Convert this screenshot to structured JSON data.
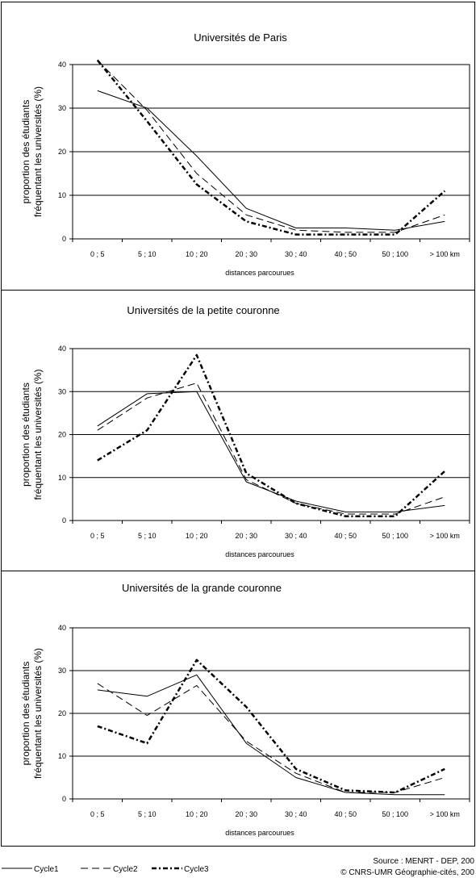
{
  "chart_data": [
    {
      "type": "line",
      "title": "Universités de Paris",
      "xlabel": "distances parcourues",
      "ylabel": [
        "proportion des étudiants",
        "fréquentant les universités  (%)"
      ],
      "categories": [
        "0 ; 5",
        "5 ; 10",
        "10 ; 20",
        "20 ; 30",
        "30 ; 40",
        "40 ; 50",
        "50 ; 100",
        "> 100 km"
      ],
      "ylim": [
        0,
        40
      ],
      "yticks": [
        "0",
        "10",
        "20",
        "30",
        "40"
      ],
      "grid": true,
      "series": [
        {
          "name": "Cycle1",
          "values": [
            34,
            30,
            19,
            7,
            2.5,
            2.5,
            2,
            4
          ]
        },
        {
          "name": "Cycle2",
          "values": [
            41,
            29.5,
            15,
            5.5,
            2,
            1.5,
            1.5,
            5.5
          ]
        },
        {
          "name": "Cycle3",
          "values": [
            41,
            27,
            12.5,
            4,
            1,
            1,
            1,
            11
          ]
        }
      ]
    },
    {
      "type": "line",
      "title": "Universités de la petite couronne",
      "xlabel": "distances parcourues",
      "ylabel": [
        "proportion des étudiants",
        "fréquentant les universités  (%)"
      ],
      "categories": [
        "0 ; 5",
        "5 ; 10",
        "10 ; 20",
        "20 ; 30",
        "30 ; 40",
        "40 ; 50",
        "50 ; 100",
        "> 100 km"
      ],
      "ylim": [
        0,
        40
      ],
      "yticks": [
        "0",
        "10",
        "20",
        "30",
        "40"
      ],
      "grid": true,
      "series": [
        {
          "name": "Cycle1",
          "values": [
            22,
            29.5,
            30,
            9,
            4.5,
            2,
            2,
            3.5
          ]
        },
        {
          "name": "Cycle2",
          "values": [
            21,
            28.5,
            32,
            9.5,
            4,
            1.5,
            1.5,
            5.5
          ]
        },
        {
          "name": "Cycle3",
          "values": [
            14,
            21,
            38.5,
            11,
            4,
            1,
            1,
            11.5
          ]
        }
      ]
    },
    {
      "type": "line",
      "title": "Universités de la grande couronne",
      "xlabel": "distances parcourues",
      "ylabel": [
        "proportion des étudiants",
        "fréquentant les universités  (%)"
      ],
      "categories": [
        "0 ; 5",
        "5 ; 10",
        "10 ; 20",
        "20 ; 30",
        "30 ; 40",
        "40 ; 50",
        "50 ; 100",
        "> 100 km"
      ],
      "ylim": [
        0,
        40
      ],
      "yticks": [
        "0",
        "10",
        "20",
        "30",
        "40"
      ],
      "grid": true,
      "series": [
        {
          "name": "Cycle1",
          "values": [
            25.5,
            24,
            29,
            13,
            5,
            1.5,
            1,
            1
          ]
        },
        {
          "name": "Cycle2",
          "values": [
            27,
            19.5,
            26.5,
            13.5,
            6,
            1.5,
            1.5,
            5
          ]
        },
        {
          "name": "Cycle3",
          "values": [
            17,
            13,
            32.5,
            21.5,
            7,
            2,
            1.5,
            7
          ]
        }
      ]
    }
  ],
  "legend": {
    "items": [
      {
        "label": "Cycle1",
        "dash": "solid",
        "width": 1
      },
      {
        "label": "Cycle2",
        "dash": "dashed",
        "width": 1
      },
      {
        "label": "Cycle3",
        "dash": "dashdot",
        "width": 2.5
      }
    ]
  },
  "source": {
    "line1": "Source : MENRT - DEP, 200",
    "line2": "© CNRS-UMR Géographie-cités, 200"
  },
  "colors": {
    "line": "#000000",
    "grid": "#000000",
    "panel_border": "#000000",
    "background": "#ffffff"
  }
}
